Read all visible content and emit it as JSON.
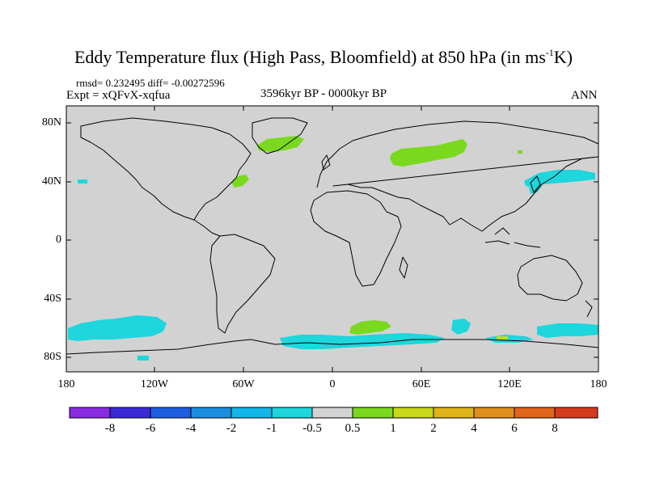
{
  "title": {
    "main": "Eddy Temperature flux (High Pass, Bloomfield) at 850 hPa (in ms",
    "sup": "-1",
    "end": "K)"
  },
  "stats": "rmsd= 0.232495 diff= -0.00272596",
  "experiment": "Expt = xQFvX-xqfua",
  "period": "3596kyr BP - 0000kyr BP",
  "season": "ANN",
  "map": {
    "projection": "cylindrical equidistant",
    "lon_range": [
      -180,
      180
    ],
    "lat_range": [
      -90,
      90
    ],
    "background_color": "#d2d2d2",
    "coastline_color": "#000000",
    "lat_ticks": [
      "80N",
      "40N",
      "0",
      "40S",
      "80S"
    ],
    "lon_ticks": [
      "180",
      "120W",
      "60W",
      "0",
      "60E",
      "120E",
      "180"
    ]
  },
  "colorbar": {
    "colors": [
      "#8a2be2",
      "#3a2ad6",
      "#1e5ee0",
      "#1c8ee0",
      "#12b6e8",
      "#1ed6dc",
      "#d2d2d2",
      "#7ad91e",
      "#c8d81a",
      "#e0b418",
      "#e0901a",
      "#e0661c",
      "#d63a1c"
    ],
    "labels": [
      "-8",
      "-6",
      "-4",
      "-2",
      "-1",
      "-0.5",
      "0.5",
      "1",
      "2",
      "4",
      "6",
      "8"
    ]
  },
  "anomaly_regions": [
    {
      "label": "Greenland positive",
      "level": "1",
      "color": "#7ad91e"
    },
    {
      "label": "Western Siberia positive",
      "level": "1",
      "color": "#7ad91e"
    },
    {
      "label": "NW Atlantic positive",
      "level": "1",
      "color": "#7ad91e"
    },
    {
      "label": "North Pacific negative",
      "level": "-0.5",
      "color": "#1ed6dc"
    },
    {
      "label": "Southern Ocean negative",
      "level": "-0.5",
      "color": "#1ed6dc"
    },
    {
      "label": "Southern Ocean south of Africa positive",
      "level": "1",
      "color": "#7ad91e"
    }
  ]
}
